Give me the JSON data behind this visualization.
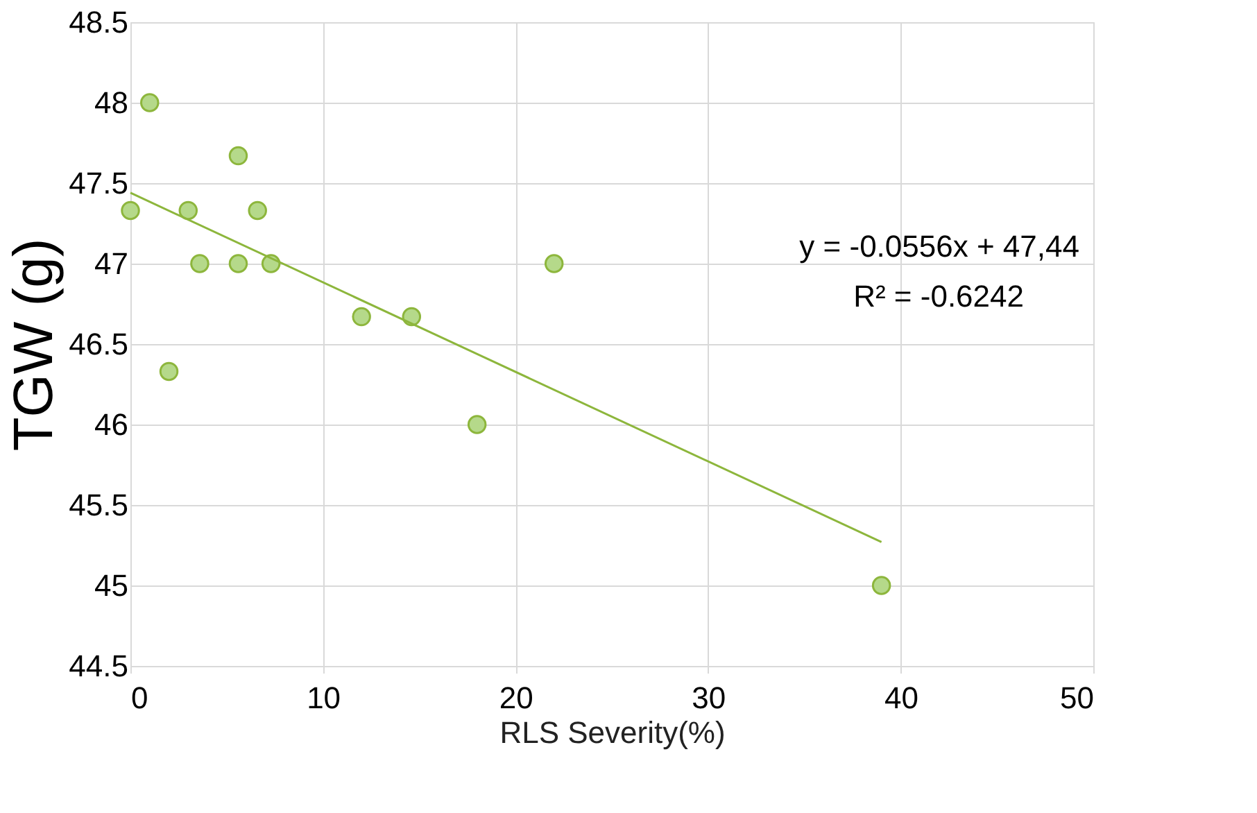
{
  "chart_data": {
    "type": "scatter",
    "xlabel": "RLS Severity(%)",
    "ylabel": "TGW (g)",
    "xlim": [
      0,
      50
    ],
    "xticks": [
      0,
      10,
      20,
      30,
      40,
      50
    ],
    "ylim": [
      44.5,
      48.5
    ],
    "yticks": [
      44.5,
      45,
      45.5,
      46,
      46.5,
      47,
      47.5,
      48,
      48.5
    ],
    "grid": true,
    "annotations": [
      "y = -0.0556x + 47,44",
      "R² = -0.6242"
    ],
    "series": [
      {
        "marker": "circle",
        "color": "#b5d98a",
        "x": [
          0,
          1,
          2,
          3,
          3.6,
          5.6,
          5.6,
          6.6,
          7.3,
          12,
          14.6,
          18,
          22,
          39
        ],
        "values": [
          47.33,
          48,
          46.33,
          47.33,
          47,
          47.67,
          47,
          47.33,
          47,
          46.67,
          46.67,
          46,
          47,
          45
        ]
      },
      {
        "type": "line",
        "marker": "none",
        "color": "#8db63c",
        "x": [
          0,
          39
        ],
        "values": [
          47.44,
          45.27
        ]
      }
    ]
  }
}
